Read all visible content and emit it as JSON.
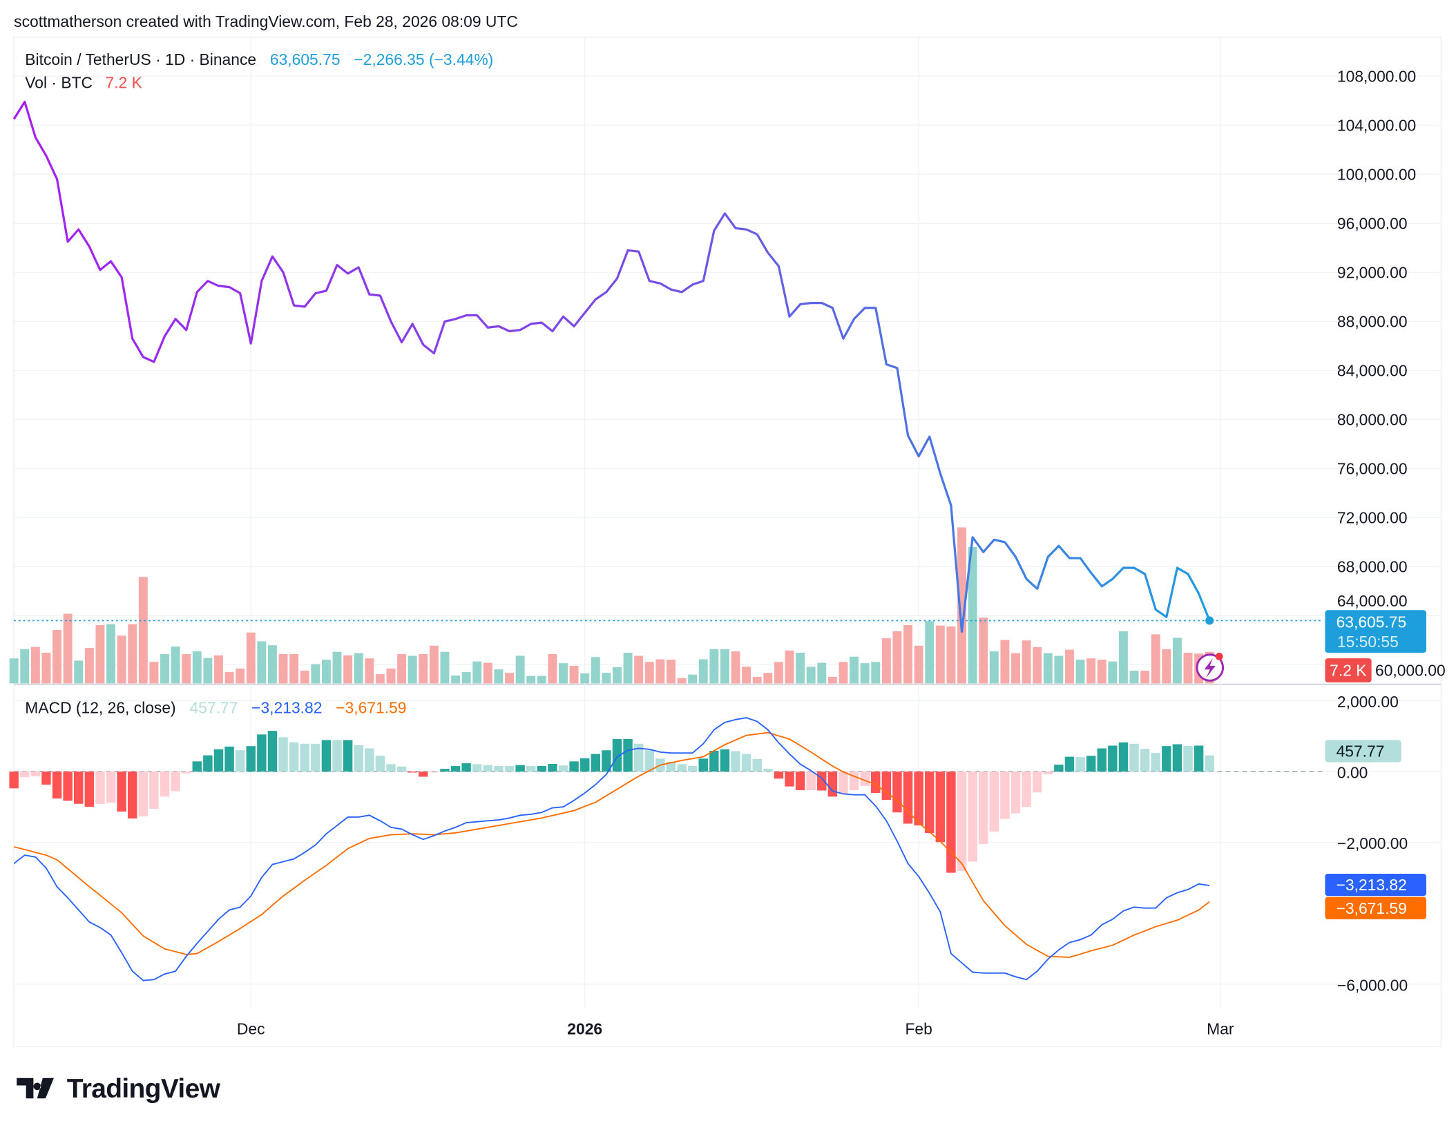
{
  "header": {
    "attribution": "scottmatherson created with TradingView.com, Feb 28, 2026 08:09 UTC"
  },
  "legend": {
    "symbol": "Bitcoin / TetherUS · 1D · Binance",
    "last_price": "63,605.75",
    "change": "−2,266.35 (−3.44%)",
    "volume_title": "Vol · BTC",
    "volume_value": "7.2 K"
  },
  "price_label": {
    "price": "63,605.75",
    "countdown": "15:50:55"
  },
  "volume_label": "7.2 K",
  "macd_legend": {
    "title": "MACD (12, 26, close)",
    "histogram": "457.77",
    "macd": "−3,213.82",
    "signal": "−3,671.59"
  },
  "macd_labels": {
    "histogram": "457.77",
    "macd": "−3,213.82",
    "signal": "−3,671.59"
  },
  "brand": {
    "logo_text": "TradingView"
  },
  "colors": {
    "price_line_start": "#a61ff0",
    "price_line_mid": "#7450e6",
    "price_line_end": "#1f9de0",
    "last_price": "#1e9fdc",
    "volume_up": "#92d3cc",
    "volume_down": "#f7a9a7",
    "volume_label": "#f04c4c",
    "macd": "#2962ff",
    "signal": "#ff6d00",
    "hist_up_strong": "#26a69a",
    "hist_up_weak": "#b2dfdb",
    "hist_down_strong": "#ff5252",
    "hist_down_weak": "#ffcdd2"
  },
  "chart_data": [
    {
      "type": "line",
      "title": "Bitcoin / TetherUS · 1D · Binance",
      "x_ticks": [
        {
          "label": "Dec",
          "date": "2025-12-01",
          "bold": false
        },
        {
          "label": "2026",
          "date": "2026-01-01",
          "bold": true
        },
        {
          "label": "Feb",
          "date": "2026-02-01",
          "bold": false
        },
        {
          "label": "Mar",
          "date": "2026-03-01",
          "bold": false
        }
      ],
      "y_ticks": [
        "108,000.00",
        "104,000.00",
        "100,000.00",
        "96,000.00",
        "92,000.00",
        "88,000.00",
        "84,000.00",
        "80,000.00",
        "76,000.00",
        "72,000.00",
        "68,000.00",
        "64,000.00",
        "60,000.00"
      ],
      "ylim": [
        60000,
        108000
      ],
      "grid": true,
      "x": [
        "2025-11-09",
        "2025-11-10",
        "2025-11-11",
        "2025-11-12",
        "2025-11-13",
        "2025-11-14",
        "2025-11-15",
        "2025-11-16",
        "2025-11-17",
        "2025-11-18",
        "2025-11-19",
        "2025-11-20",
        "2025-11-21",
        "2025-11-22",
        "2025-11-23",
        "2025-11-24",
        "2025-11-25",
        "2025-11-26",
        "2025-11-27",
        "2025-11-28",
        "2025-11-29",
        "2025-11-30",
        "2025-12-01",
        "2025-12-02",
        "2025-12-03",
        "2025-12-04",
        "2025-12-05",
        "2025-12-06",
        "2025-12-07",
        "2025-12-08",
        "2025-12-09",
        "2025-12-10",
        "2025-12-11",
        "2025-12-12",
        "2025-12-13",
        "2025-12-14",
        "2025-12-15",
        "2025-12-16",
        "2025-12-17",
        "2025-12-18",
        "2025-12-19",
        "2025-12-20",
        "2025-12-21",
        "2025-12-22",
        "2025-12-23",
        "2025-12-24",
        "2025-12-25",
        "2025-12-26",
        "2025-12-27",
        "2025-12-28",
        "2025-12-29",
        "2025-12-30",
        "2025-12-31",
        "2026-01-01",
        "2026-01-02",
        "2026-01-03",
        "2026-01-04",
        "2026-01-05",
        "2026-01-06",
        "2026-01-07",
        "2026-01-08",
        "2026-01-09",
        "2026-01-10",
        "2026-01-11",
        "2026-01-12",
        "2026-01-13",
        "2026-01-14",
        "2026-01-15",
        "2026-01-16",
        "2026-01-17",
        "2026-01-18",
        "2026-01-19",
        "2026-01-20",
        "2026-01-21",
        "2026-01-22",
        "2026-01-23",
        "2026-01-24",
        "2026-01-25",
        "2026-01-26",
        "2026-01-27",
        "2026-01-28",
        "2026-01-29",
        "2026-01-30",
        "2026-01-31",
        "2026-02-01",
        "2026-02-02",
        "2026-02-03",
        "2026-02-04",
        "2026-02-05",
        "2026-02-06",
        "2026-02-07",
        "2026-02-08",
        "2026-02-09",
        "2026-02-10",
        "2026-02-11",
        "2026-02-12",
        "2026-02-13",
        "2026-02-14",
        "2026-02-15",
        "2026-02-16",
        "2026-02-17",
        "2026-02-18",
        "2026-02-19",
        "2026-02-20",
        "2026-02-21",
        "2026-02-22",
        "2026-02-23",
        "2026-02-24",
        "2026-02-25",
        "2026-02-26",
        "2026-02-27",
        "2026-02-28"
      ],
      "close": [
        104500,
        105900,
        103000,
        101500,
        99600,
        94500,
        95500,
        94100,
        92200,
        92900,
        91600,
        86600,
        85100,
        84700,
        86800,
        88200,
        87300,
        90400,
        91300,
        90900,
        90800,
        90300,
        86200,
        91300,
        93300,
        92000,
        89300,
        89200,
        90300,
        90500,
        92600,
        91900,
        92400,
        90200,
        90100,
        88000,
        86300,
        87800,
        86100,
        85400,
        88000,
        88200,
        88500,
        88500,
        87500,
        87600,
        87200,
        87300,
        87800,
        87900,
        87200,
        88400,
        87600,
        88700,
        89800,
        90400,
        91500,
        93800,
        93700,
        91300,
        91100,
        90600,
        90400,
        91000,
        91300,
        95400,
        96800,
        95600,
        95500,
        95100,
        93600,
        92500,
        88400,
        89400,
        89500,
        89500,
        89100,
        86600,
        88200,
        89100,
        89100,
        84500,
        84200,
        78700,
        77000,
        78600,
        75600,
        73000,
        62700,
        70400,
        69200,
        70200,
        70000,
        68800,
        67000,
        66200,
        68800,
        69700,
        68700,
        68700,
        67500,
        66400,
        67000,
        67900,
        67900,
        67400,
        64500,
        63900,
        67900,
        67400,
        65800,
        63605.75
      ]
    },
    {
      "type": "bar",
      "title": "Vol · BTC",
      "unit": "K",
      "values": [
        5.7,
        7.8,
        8.3,
        7.0,
        12.2,
        15.9,
        5.2,
        8.1,
        13.3,
        13.5,
        10.9,
        13.5,
        24.3,
        4.9,
        6.7,
        8.4,
        6.7,
        7.3,
        5.8,
        6.4,
        2.6,
        3.4,
        11.6,
        9.6,
        8.7,
        6.7,
        6.7,
        2.9,
        4.4,
        5.4,
        7.2,
        6.4,
        6.9,
        5.7,
        2.1,
        3.4,
        6.7,
        6.3,
        6.7,
        8.6,
        7.2,
        1.8,
        2.6,
        5.0,
        4.7,
        3.2,
        2.4,
        6.3,
        1.7,
        1.7,
        6.7,
        4.6,
        4.0,
        2.3,
        6.0,
        2.4,
        3.7,
        7.0,
        6.3,
        4.9,
        5.5,
        5.4,
        1.2,
        2.0,
        5.5,
        7.8,
        7.8,
        7.3,
        3.8,
        1.5,
        2.4,
        4.9,
        7.5,
        7.0,
        3.8,
        4.7,
        1.5,
        4.9,
        6.1,
        4.6,
        4.9,
        10.3,
        11.9,
        13.3,
        8.6,
        14.2,
        13.2,
        13.0,
        35.6,
        31.1,
        15.0,
        7.3,
        9.9,
        6.9,
        9.8,
        8.3,
        6.9,
        6.3,
        7.7,
        5.4,
        5.7,
        5.4,
        5.0,
        11.9,
        2.9,
        2.9,
        11.2,
        7.8,
        10.4,
        7.0,
        6.8,
        7.2
      ]
    },
    {
      "type": "line",
      "title": "MACD (12, 26, close)",
      "y_ticks": [
        "2,000.00",
        "0.00",
        "−2,000.00",
        "−6,000.00"
      ],
      "ylim": [
        -7000,
        3000
      ],
      "series": [
        {
          "name": "MACD",
          "values": [
            -2594,
            -2358,
            -2410,
            -2725,
            -3249,
            -3563,
            -3904,
            -4245,
            -4402,
            -4611,
            -5109,
            -5633,
            -5895,
            -5869,
            -5712,
            -5633,
            -5214,
            -4847,
            -4506,
            -4166,
            -3904,
            -3825,
            -3511,
            -2987,
            -2620,
            -2541,
            -2463,
            -2279,
            -2070,
            -1755,
            -1520,
            -1284,
            -1284,
            -1231,
            -1389,
            -1572,
            -1624,
            -1782,
            -1913,
            -1808,
            -1677,
            -1572,
            -1441,
            -1415,
            -1389,
            -1362,
            -1310,
            -1231,
            -1205,
            -1153,
            -1022,
            -996,
            -812,
            -603,
            -367,
            -79,
            419,
            603,
            655,
            629,
            550,
            524,
            524,
            524,
            786,
            1179,
            1389,
            1467,
            1520,
            1415,
            1179,
            812,
            498,
            210,
            26,
            -184,
            -550,
            -629,
            -655,
            -655,
            -969,
            -1389,
            -1965,
            -2594,
            -2961,
            -3432,
            -3956,
            -5135,
            -5397,
            -5659,
            -5685,
            -5685,
            -5685,
            -5790,
            -5869,
            -5633,
            -5292,
            -5030,
            -4821,
            -4742,
            -4611,
            -4323,
            -4166,
            -3930,
            -3825,
            -3851,
            -3851,
            -3563,
            -3420,
            -3327,
            -3170,
            -3213.82
          ]
        },
        {
          "name": "Signal",
          "values": [
            -2122,
            -2200,
            -2280,
            -2358,
            -2489,
            -2740,
            -2995,
            -3249,
            -3490,
            -3735,
            -3982,
            -4310,
            -4637,
            -4820,
            -5004,
            -5080,
            -5161,
            -5135,
            -4965,
            -4795,
            -4610,
            -4428,
            -4230,
            -4035,
            -3770,
            -3511,
            -3290,
            -3065,
            -2855,
            -2646,
            -2410,
            -2175,
            -2030,
            -1886,
            -1834,
            -1782,
            -1768,
            -1755,
            -1768,
            -1782,
            -1755,
            -1729,
            -1676,
            -1624,
            -1572,
            -1520,
            -1467,
            -1415,
            -1362,
            -1310,
            -1240,
            -1170,
            -1100,
            -980,
            -865,
            -680,
            -498,
            -315,
            -131,
            26,
            183,
            250,
            314,
            366,
            419,
            590,
            760,
            890,
            1022,
            1060,
            1100,
            1010,
            917,
            735,
            550,
            350,
            157,
            -10,
            -131,
            -250,
            -367,
            -590,
            -812,
            -1125,
            -1441,
            -1700,
            -1965,
            -2280,
            -2594,
            -3120,
            -3642,
            -3995,
            -4349,
            -4610,
            -4873,
            -5045,
            -5214,
            -5227,
            -5240,
            -5150,
            -5057,
            -4978,
            -4899,
            -4755,
            -4611,
            -4493,
            -4375,
            -4283,
            -4192,
            -4050,
            -3904,
            -3671.59
          ]
        }
      ],
      "histogram": "MACD − Signal"
    }
  ]
}
